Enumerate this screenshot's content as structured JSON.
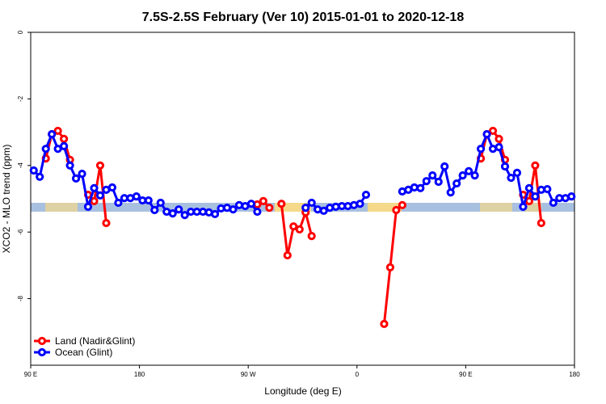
{
  "chart_data": {
    "type": "line",
    "title": "7.5S-2.5S February (Ver 10)   2015-01-01 to 2020-12-18",
    "xlabel": "Longitude (deg E)",
    "ylabel": "XCO2 - MLO trend (ppm)",
    "x": [
      92.5,
      97.5,
      102.5,
      107.5,
      112.5,
      117.5,
      122.5,
      127.5,
      132.5,
      137.5,
      142.5,
      147.5,
      152.5,
      157.5,
      162.5,
      167.5,
      172.5,
      177.5,
      182.5,
      187.5,
      192.5,
      197.5,
      202.5,
      207.5,
      212.5,
      217.5,
      222.5,
      227.5,
      232.5,
      237.5,
      242.5,
      247.5,
      252.5,
      257.5,
      262.5,
      267.5,
      272.5,
      277.5,
      282.5,
      287.5,
      292.5,
      297.5,
      302.5,
      307.5,
      312.5,
      317.5,
      322.5,
      327.5,
      332.5,
      337.5,
      342.5,
      347.5,
      352.5,
      357.5,
      362.5,
      367.5,
      372.5,
      377.5,
      382.5,
      387.5,
      392.5,
      397.5,
      402.5,
      407.5,
      412.5,
      417.5,
      422.5,
      427.5,
      432.5,
      437.5,
      442.5,
      447.5,
      452.5,
      457.5,
      462.5,
      467.5,
      472.5,
      477.5,
      482.5,
      487.5,
      492.5,
      497.5,
      502.5,
      507.5,
      512.5,
      517.5,
      522.5,
      527.5,
      532.5,
      537.5
    ],
    "series": [
      {
        "name": "Land (Nadir&Glint)",
        "color": "#ff0000",
        "values": [
          null,
          null,
          -3.79,
          -3.06,
          -2.96,
          -3.2,
          -3.83,
          null,
          null,
          -4.88,
          -5.07,
          -4.0,
          -5.73,
          null,
          null,
          null,
          null,
          null,
          null,
          null,
          null,
          null,
          null,
          null,
          null,
          null,
          null,
          null,
          null,
          null,
          null,
          null,
          null,
          null,
          null,
          null,
          null,
          -5.17,
          -5.07,
          -5.27,
          null,
          -5.15,
          -6.7,
          -5.83,
          -5.92,
          -5.41,
          -6.12,
          null,
          null,
          null,
          null,
          null,
          null,
          null,
          null,
          null,
          null,
          null,
          -8.76,
          -7.06,
          -5.34,
          -5.19,
          null,
          null,
          null,
          null,
          null,
          null,
          null,
          null,
          null,
          null,
          null,
          null,
          -3.79,
          -3.06,
          -2.96,
          -3.2,
          -3.83,
          null,
          null,
          -4.88,
          -5.07,
          -4.0,
          -5.73,
          null,
          null,
          null,
          null,
          null
        ]
      },
      {
        "name": "Ocean (Glint)",
        "color": "#0000ff",
        "values": [
          -4.15,
          -4.34,
          -3.5,
          -3.06,
          -3.5,
          -3.42,
          -4.0,
          -4.39,
          -4.25,
          -5.24,
          -4.68,
          -4.9,
          -4.73,
          -4.66,
          -5.12,
          -4.98,
          -4.98,
          -4.93,
          -5.05,
          -5.05,
          -5.34,
          -5.12,
          -5.39,
          -5.44,
          -5.32,
          -5.49,
          -5.39,
          -5.39,
          -5.39,
          -5.41,
          -5.46,
          -5.29,
          -5.27,
          -5.32,
          -5.19,
          -5.22,
          -5.15,
          -5.39,
          null,
          null,
          null,
          null,
          null,
          null,
          null,
          -5.27,
          -5.12,
          -5.32,
          -5.36,
          -5.27,
          -5.24,
          -5.22,
          -5.22,
          -5.19,
          -5.15,
          -4.88,
          null,
          null,
          null,
          null,
          null,
          -4.78,
          -4.73,
          -4.66,
          -4.68,
          -4.47,
          -4.3,
          -4.49,
          -4.03,
          -4.81,
          -4.54,
          -4.3,
          -4.17,
          -4.3,
          -3.5,
          -3.06,
          -3.5,
          -3.45,
          -4.03,
          -4.37,
          -4.22,
          -5.24,
          -4.68,
          -4.93,
          -4.73,
          -4.71,
          -5.12,
          -4.98,
          -4.98,
          -4.93
        ]
      }
    ],
    "xlim": [
      90,
      540
    ],
    "xticks": [
      {
        "value": 90,
        "label": "90 E"
      },
      {
        "value": 180,
        "label": "180"
      },
      {
        "value": 270,
        "label": "90 W"
      },
      {
        "value": 360,
        "label": "0"
      },
      {
        "value": 450,
        "label": "90 E"
      },
      {
        "value": 540,
        "label": "180"
      }
    ],
    "ylim": [
      -10,
      0
    ],
    "yticks": [
      0,
      -2,
      -4,
      -6,
      -8
    ],
    "legend": "bottom-left"
  }
}
